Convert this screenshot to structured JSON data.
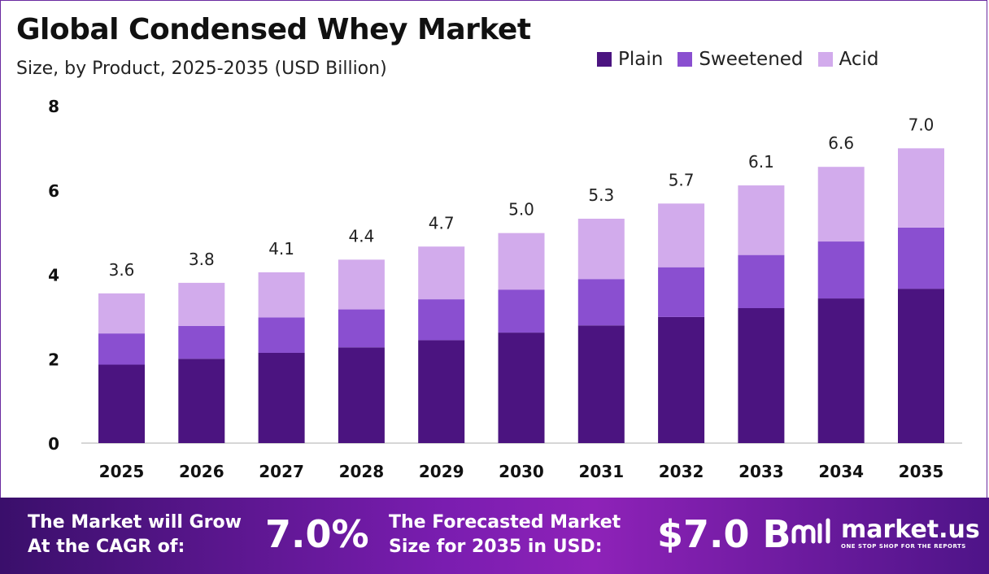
{
  "title": "Global Condensed Whey Market",
  "subtitle": "Size, by Product, 2025-2035 (USD Billion)",
  "legend": [
    {
      "label": "Plain",
      "color": "#4b1480"
    },
    {
      "label": "Sweetened",
      "color": "#8a4fd0"
    },
    {
      "label": "Acid",
      "color": "#d2abec"
    }
  ],
  "chart_data": {
    "type": "bar",
    "stacked": true,
    "categories": [
      "2025",
      "2026",
      "2027",
      "2028",
      "2029",
      "2030",
      "2031",
      "2032",
      "2033",
      "2034",
      "2035"
    ],
    "series": [
      {
        "name": "Plain",
        "values": [
          1.86,
          2.0,
          2.14,
          2.27,
          2.44,
          2.62,
          2.79,
          2.99,
          3.2,
          3.43,
          3.66
        ],
        "color": "#4b1480"
      },
      {
        "name": "Sweetened",
        "values": [
          0.74,
          0.78,
          0.84,
          0.9,
          0.97,
          1.02,
          1.1,
          1.18,
          1.26,
          1.35,
          1.45
        ],
        "color": "#8a4fd0"
      },
      {
        "name": "Acid",
        "values": [
          0.95,
          1.02,
          1.07,
          1.18,
          1.25,
          1.34,
          1.43,
          1.51,
          1.65,
          1.77,
          1.88
        ],
        "color": "#d2abec"
      }
    ],
    "totals": [
      "3.6",
      "3.8",
      "4.1",
      "4.4",
      "4.7",
      "5.0",
      "5.3",
      "5.7",
      "6.1",
      "6.6",
      "7.0"
    ],
    "yticks": [
      "0",
      "2",
      "4",
      "6",
      "8"
    ],
    "ylim": [
      0,
      8
    ],
    "grid": false,
    "legend_position": "top-right"
  },
  "footer": {
    "cagr_label_line1": "The Market will Grow",
    "cagr_label_line2": "At the CAGR of:",
    "cagr_value": "7.0%",
    "forecast_label_line1": "The Forecasted Market",
    "forecast_label_line2": "Size for 2035 in USD:",
    "forecast_value": "$7.0 B",
    "logo_name": "market.us",
    "logo_tagline": "ONE STOP SHOP FOR THE REPORTS",
    "logo_icon": "market-us-logo-icon"
  }
}
